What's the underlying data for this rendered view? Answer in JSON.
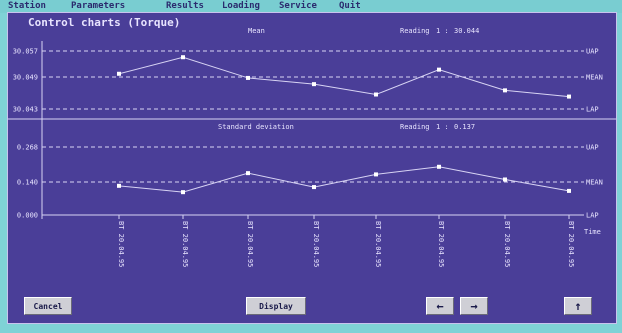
{
  "menu": [
    "Station",
    "Parameters",
    "Results",
    "Loading",
    "Service",
    "Quit"
  ],
  "window": {
    "title": "Control charts (Torque)"
  },
  "colors": {
    "background": "#4a3e98",
    "lines": "#d8d4f4",
    "text": "#e8e4ff",
    "menu": "#79cdd1"
  },
  "chart_data": [
    {
      "type": "line",
      "title": "Mean",
      "reading_label": "Reading",
      "reading_mark": "1 :",
      "reading_value": "30.044",
      "yticks": [
        "30.057",
        "30.049",
        "30.043"
      ],
      "right_labels": [
        "UAP",
        "MEAN",
        "LAP"
      ],
      "ylim": [
        30.043,
        30.057
      ],
      "values": [
        30.0515,
        30.0555,
        30.0505,
        30.049,
        30.0465,
        30.0525,
        30.0475,
        30.046
      ]
    },
    {
      "type": "line",
      "title": "Standard deviation",
      "reading_label": "Reading",
      "reading_mark": "1 :",
      "reading_value": "0.137",
      "yticks": [
        "0.268",
        "0.140",
        "0.000"
      ],
      "right_labels": [
        "UAP",
        "MEAN",
        "LAP"
      ],
      "ylim": [
        0.0,
        0.268
      ],
      "values": [
        0.115,
        0.09,
        0.165,
        0.11,
        0.16,
        0.19,
        0.14,
        0.095
      ]
    }
  ],
  "x_labels": [
    "BT 20.04.95",
    "BT 20.04.95",
    "BT 20.04.95",
    "BT 20.04.95",
    "BT 20.04.95",
    "BT 20.04.95",
    "BT 20.04.95",
    "BT 20.04.95"
  ],
  "x_axis_end_label": "Time",
  "buttons": {
    "cancel": "Cancel",
    "display": "Display",
    "left_icon": "←",
    "right_icon": "→",
    "up_icon": "↑"
  }
}
